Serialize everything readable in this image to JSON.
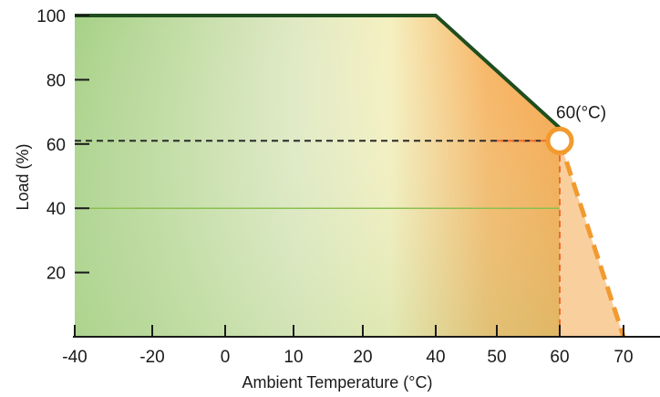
{
  "chart_data": {
    "type": "line",
    "xlabel": "Ambient Temperature (°C)",
    "ylabel": "Load (%)",
    "x_ticks": [
      -40,
      -20,
      0,
      10,
      20,
      40,
      50,
      60,
      70
    ],
    "y_ticks": [
      20,
      40,
      60,
      80,
      100
    ],
    "xlim": [
      -40,
      70
    ],
    "ylim": [
      0,
      100
    ],
    "series": [
      {
        "style": "solid",
        "color": "#1f4d1f",
        "points": [
          [
            -40,
            100
          ],
          [
            40,
            100
          ],
          [
            60,
            65
          ]
        ]
      },
      {
        "style": "dashed",
        "color": "#f29a2e",
        "points": [
          [
            60,
            61
          ],
          [
            70,
            0
          ]
        ]
      }
    ],
    "reference_lines": [
      {
        "orientation": "horizontal",
        "y": 61,
        "x_from": -40,
        "x_to": 60,
        "style": "dashed",
        "color": "#2a2a2a"
      },
      {
        "orientation": "horizontal",
        "y": 61,
        "x_from": 50,
        "x_to": 60,
        "style": "dashed",
        "color": "#f26a2e"
      },
      {
        "orientation": "vertical",
        "x": 60,
        "y_from": 0,
        "y_to": 61,
        "style": "dashed",
        "color": "#f26a2e"
      },
      {
        "orientation": "horizontal",
        "y": 40,
        "x_from": -40,
        "x_to": 60,
        "style": "solid",
        "color": "#8cbf50"
      }
    ],
    "marker": {
      "x": 60,
      "y": 61,
      "shape": "circle",
      "color": "#f29a2e"
    },
    "annotation": {
      "text": "60(°C)",
      "x": 60,
      "y": 61
    },
    "background": {
      "gradient": [
        "#9ccc7a",
        "#f3f2c8",
        "#f6a447"
      ]
    },
    "grid": false
  }
}
